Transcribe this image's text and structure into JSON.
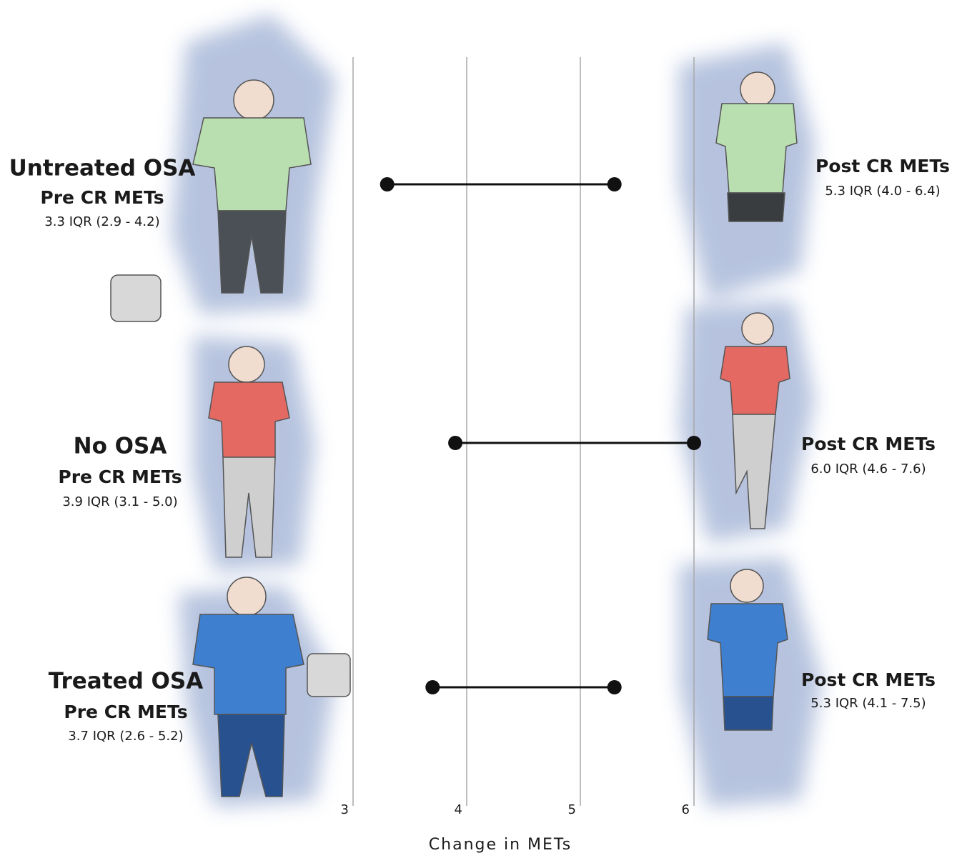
{
  "chart_data": {
    "type": "dumbbell",
    "x_label": "Change in METs",
    "categories": [
      "Untreated OSA",
      "No OSA",
      "Treated OSA"
    ],
    "series": [
      {
        "name": "Pre CR METs",
        "color": "#111111",
        "values": [
          3.3,
          3.9,
          3.7
        ],
        "value_labels": [
          "3.3 IQR (2.9 - 4.2)",
          "3.9 IQR (3.1 - 5.0)",
          "3.7 IQR (2.6 - 5.2)"
        ]
      },
      {
        "name": "Post CR METs",
        "color": "#111111",
        "values": [
          5.3,
          6.0,
          5.3
        ],
        "value_labels": [
          "5.3 IQR (4.0 - 6.4)",
          "6.0 IQR (4.6 - 7.6)",
          "5.3 IQR (4.1 - 7.5)"
        ]
      }
    ],
    "xlim": [
      3,
      6
    ],
    "xticks": [
      3,
      4,
      5,
      6
    ],
    "grid": true
  }
}
